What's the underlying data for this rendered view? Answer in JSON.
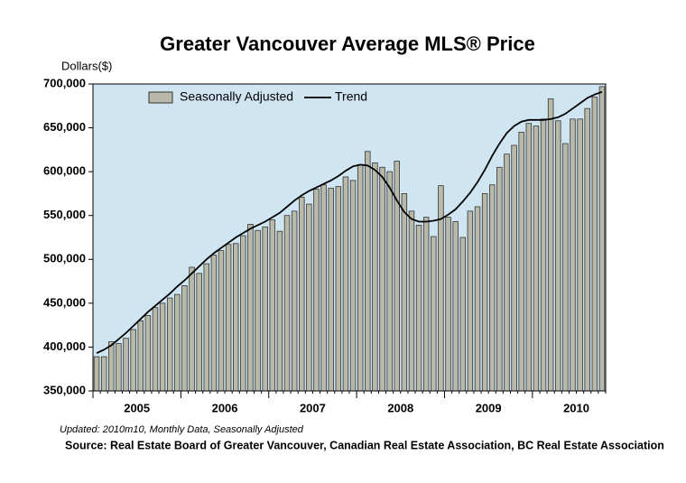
{
  "chart_data": {
    "type": "bar",
    "title": "Greater Vancouver Average MLS® Price",
    "ylabel": "Dollars($)",
    "categories": [
      null,
      null,
      null,
      null,
      null,
      "2005",
      null,
      null,
      null,
      null,
      null,
      null,
      null,
      null,
      null,
      null,
      null,
      "2006",
      null,
      null,
      null,
      null,
      null,
      null,
      null,
      null,
      null,
      null,
      null,
      "2007",
      null,
      null,
      null,
      null,
      null,
      null,
      null,
      null,
      null,
      null,
      null,
      "2008",
      null,
      null,
      null,
      null,
      null,
      null,
      null,
      null,
      null,
      null,
      null,
      "2009",
      null,
      null,
      null,
      null,
      null,
      null,
      null,
      null,
      null,
      null,
      null,
      "2010",
      null,
      null,
      null,
      null
    ],
    "series": [
      {
        "name": "Seasonally Adjusted",
        "type": "bar",
        "color": "#b9b9aa",
        "values": [
          389000,
          389000,
          406000,
          404000,
          410000,
          420000,
          430000,
          436000,
          445000,
          450000,
          456000,
          460000,
          470000,
          491000,
          484000,
          495000,
          505000,
          510000,
          517000,
          518000,
          527000,
          540000,
          533000,
          537000,
          545000,
          532000,
          550000,
          555000,
          571000,
          563000,
          580000,
          585000,
          581000,
          583000,
          594000,
          590000,
          608000,
          623000,
          610000,
          605000,
          600000,
          612000,
          575000,
          555000,
          539000,
          548000,
          526000,
          584000,
          548000,
          543000,
          525000,
          555000,
          560000,
          575000,
          585000,
          605000,
          620000,
          630000,
          645000,
          655000,
          652000,
          660000,
          683000,
          658000,
          632000,
          660000,
          660000,
          672000,
          685000,
          697000
        ]
      },
      {
        "name": "Trend",
        "type": "line",
        "color": "#000000",
        "values": [
          393000,
          397000,
          402000,
          409000,
          416000,
          424000,
          432000,
          440000,
          447000,
          454000,
          461000,
          469000,
          476000,
          484000,
          492000,
          500000,
          507000,
          513000,
          519000,
          525000,
          530000,
          535000,
          539000,
          543000,
          548000,
          553000,
          560000,
          567000,
          573000,
          578000,
          582000,
          586000,
          590000,
          595000,
          601000,
          606000,
          608000,
          607000,
          602000,
          594000,
          582000,
          567000,
          554000,
          546000,
          543000,
          543000,
          544000,
          546000,
          551000,
          557000,
          566000,
          576000,
          588000,
          602000,
          618000,
          632000,
          644000,
          652000,
          657000,
          659000,
          659000,
          659000,
          660000,
          662000,
          666000,
          672000,
          678000,
          684000,
          688000,
          691000
        ]
      }
    ],
    "ylim": [
      350000,
      700000
    ],
    "yticks": [
      {
        "value": 350000,
        "label": "350,000"
      },
      {
        "value": 400000,
        "label": "400,000"
      },
      {
        "value": 450000,
        "label": "450,000"
      },
      {
        "value": 500000,
        "label": "500,000"
      },
      {
        "value": 550000,
        "label": "550,000"
      },
      {
        "value": 600000,
        "label": "600,000"
      },
      {
        "value": 650000,
        "label": "650,000"
      },
      {
        "value": 700000,
        "label": "700,000"
      }
    ],
    "grid": false,
    "legend": "top-left",
    "footnote": "Updated: 2010m10, Monthly Data, Seasonally Adjusted",
    "source": "Source: Real Estate Board of Greater Vancouver, Canadian Real Estate Association, BC Real Estate Association"
  }
}
